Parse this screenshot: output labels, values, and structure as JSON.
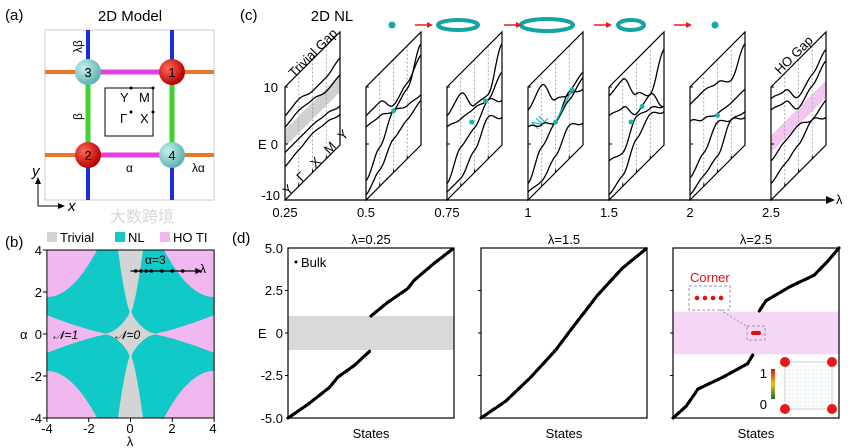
{
  "figure": {
    "panel_labels": [
      "(a)",
      "(b)",
      "(c)",
      "(d)"
    ],
    "watermark": "大数跨境"
  },
  "panel_a": {
    "title": "2D Model",
    "sites": [
      "1",
      "2",
      "3",
      "4"
    ],
    "bond_labels": {
      "lambda_beta": "λβ",
      "beta": "β",
      "alpha": "α",
      "lambda_alpha": "λα"
    },
    "bz_points": {
      "Y": "Y",
      "M": "M",
      "G": "Γ",
      "X": "X"
    },
    "axes": {
      "x": "x",
      "y": "y"
    },
    "colors": {
      "site_red": "#d81010",
      "site_cyan": "#7fd3cf",
      "alpha_bond": "#e040e0",
      "beta_bond": "#3fd12c",
      "lambda_alpha_bond": "#e8772a",
      "lambda_beta_bond": "#1b2fd8"
    }
  },
  "chart_data": [
    {
      "id": "phase_diagram",
      "type": "heatmap",
      "legend": [
        "Trivial",
        "NL",
        "HO TI"
      ],
      "legend_placement": "top",
      "colors": {
        "Trivial": "#d4d4d4",
        "NL": "#11c9c6",
        "HO TI": "#f1b8ef"
      },
      "xlabel": "λ",
      "ylabel": "α",
      "xlim": [
        -4,
        4
      ],
      "ylim": [
        -4,
        4
      ],
      "xticks": [
        "-4",
        "-2",
        "0",
        "2",
        "4"
      ],
      "yticks": [
        "4",
        "2",
        "0",
        "-2",
        "-4"
      ],
      "annotations": {
        "n1": "𝒩=1",
        "n0": "𝒩=0",
        "path": "α=3",
        "path_axis": "λ"
      },
      "path_alpha": 3,
      "path_lambdas": [
        0.25,
        0.5,
        0.75,
        1,
        1.5,
        2,
        2.5
      ]
    },
    {
      "id": "band_structures",
      "type": "line",
      "title": "2D NL",
      "xlabel": "λ",
      "x_ticks": [
        "0.25",
        "0.5",
        "0.75",
        "1",
        "1.5",
        "2",
        "2.5"
      ],
      "ylabel": "E",
      "y_ticks": [
        "10",
        "0",
        "-10"
      ],
      "ylim": [
        -10,
        10
      ],
      "k_path": [
        "Y",
        "Γ",
        "X",
        "M",
        "Y"
      ],
      "annotations": {
        "trivial": "Trivial Gap",
        "ho": "HO Gap",
        "nl": "NL"
      },
      "nodal_line_size": [
        0,
        0.4,
        0.8,
        1,
        0.5,
        0
      ],
      "panels": [
        {
          "lambda": 0.25,
          "gap": [
            -0.5,
            2.5
          ],
          "gap_color": "#d0d0d0",
          "bands": [
            [
              5,
              5.5,
              4.5,
              4.5,
              5.5
            ],
            [
              3,
              3.5,
              3,
              2,
              2.5
            ],
            [
              -1.5,
              -1.5,
              -1.5,
              -2,
              -3
            ],
            [
              -4,
              -3.5,
              -3,
              -3.5,
              -4.5
            ]
          ],
          "nodes": []
        },
        {
          "lambda": 0.5,
          "bands": [
            [
              5,
              5,
              2,
              3.5,
              6
            ],
            [
              3,
              2.5,
              1,
              2.5,
              8
            ],
            [
              -6.5,
              -3,
              1,
              -0.5,
              -1
            ],
            [
              -9,
              -7,
              -4,
              -3,
              -2
            ]
          ],
          "nodes": [
            [
              0.5,
              1
            ]
          ]
        },
        {
          "lambda": 0.75,
          "bands": [
            [
              5,
              6.5,
              2,
              1.5,
              8
            ],
            [
              3,
              2,
              1.5,
              0.5,
              -2
            ],
            [
              -7,
              -3,
              -2,
              0.5,
              3
            ],
            [
              -8.5,
              -8.5,
              -6,
              -2.5,
              -5
            ]
          ],
          "nodes": [
            [
              0.45,
              -0.5
            ],
            [
              0.7,
              0.8
            ]
          ]
        },
        {
          "lambda": 1,
          "bands": [
            [
              6,
              8,
              3,
              1.5,
              0
            ],
            [
              3,
              1,
              -1,
              2,
              3
            ],
            [
              -7,
              -3,
              -1,
              0.5,
              2
            ],
            [
              -8.5,
              -9,
              -7,
              -4,
              -6
            ]
          ],
          "nodes": [
            [
              0.5,
              -1
            ],
            [
              0.8,
              1.8
            ]
          ]
        },
        {
          "lambda": 1.5,
          "bands": [
            [
              8.5,
              9,
              4,
              1.5,
              7
            ],
            [
              5,
              4,
              0.5,
              1.5,
              -3
            ],
            [
              -3,
              -4,
              0,
              -1,
              -3
            ],
            [
              -9,
              -8,
              -4,
              -2,
              -4
            ]
          ],
          "nodes": [
            [
              0.4,
              0
            ],
            [
              0.6,
              0.8
            ]
          ]
        },
        {
          "lambda": 2,
          "bands": [
            [
              7,
              7,
              6,
              4,
              8
            ],
            [
              4,
              2,
              0.5,
              0,
              0
            ],
            [
              -6,
              -4,
              -1,
              -3,
              -4
            ],
            [
              -9,
              -8,
              -7,
              -3,
              -5
            ]
          ],
          "nodes": [
            [
              0.5,
              0.2
            ]
          ]
        },
        {
          "lambda": 2.5,
          "gap": [
            -1.5,
            1.5
          ],
          "gap_color": "#f3c6f0",
          "bands": [
            [
              8,
              7,
              3.5,
              5,
              7
            ],
            [
              6,
              5,
              1.5,
              3,
              5
            ],
            [
              -3,
              -2,
              -1.5,
              -3,
              -2
            ],
            [
              -7,
              -6,
              -5,
              -3,
              -5
            ]
          ],
          "nodes": []
        }
      ]
    },
    {
      "id": "states_l025",
      "type": "scatter",
      "title": "λ=0.25",
      "xlabel": "States",
      "ylabel": "E",
      "ylim": [
        -5,
        5
      ],
      "yticks": [
        "5.0",
        "2.5",
        "0",
        "-2.5",
        "-5.0"
      ],
      "legend": "Bulk",
      "gap": [
        -1,
        1
      ],
      "gap_color": "#d9d9d9",
      "segments": [
        [
          [
            0,
            -5
          ],
          [
            0.12,
            -4.2
          ],
          [
            0.25,
            -3.2
          ],
          [
            0.3,
            -2.6
          ],
          [
            0.4,
            -1.9
          ],
          [
            0.5,
            -1
          ]
        ],
        [
          [
            0.5,
            1
          ],
          [
            0.6,
            1.8
          ],
          [
            0.72,
            2.6
          ],
          [
            0.76,
            3.1
          ],
          [
            0.88,
            4.1
          ],
          [
            1,
            5
          ]
        ]
      ]
    },
    {
      "id": "states_l15",
      "type": "scatter",
      "title": "λ=1.5",
      "xlabel": "States",
      "ylabel": "E",
      "ylim": [
        -5,
        5
      ],
      "segments": [
        [
          [
            0,
            -5
          ],
          [
            0.15,
            -4
          ],
          [
            0.3,
            -2.6
          ],
          [
            0.45,
            -1
          ],
          [
            0.55,
            0.3
          ],
          [
            0.7,
            2.2
          ],
          [
            0.85,
            3.8
          ],
          [
            1,
            5
          ]
        ]
      ]
    },
    {
      "id": "states_l25",
      "type": "scatter",
      "title": "λ=2.5",
      "xlabel": "States",
      "ylabel": "E",
      "ylim": [
        -5,
        5
      ],
      "gap": [
        -1.25,
        1.25
      ],
      "gap_color": "#f6d6f5",
      "corner_label": "Corner",
      "corner_states": [
        [
          0.5,
          0
        ]
      ],
      "inset_colorbar": [
        "1",
        "0"
      ],
      "segments": [
        [
          [
            0,
            -5
          ],
          [
            0.08,
            -4.3
          ],
          [
            0.15,
            -3.3
          ],
          [
            0.3,
            -2.6
          ],
          [
            0.45,
            -1.8
          ],
          [
            0.48,
            -1.3
          ]
        ],
        [
          [
            0.52,
            1.3
          ],
          [
            0.56,
            1.9
          ],
          [
            0.7,
            2.7
          ],
          [
            0.85,
            3.4
          ],
          [
            0.93,
            4.2
          ],
          [
            1,
            5
          ]
        ]
      ]
    }
  ]
}
